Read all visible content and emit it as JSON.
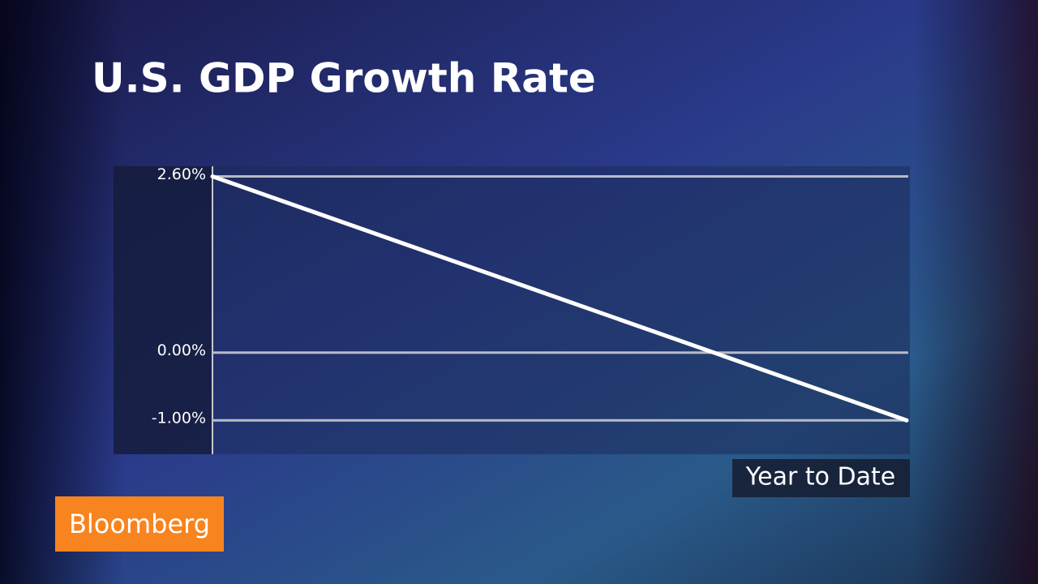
{
  "chart_data": {
    "type": "line",
    "title": "U.S. GDP Growth Rate",
    "x_label": "Year to Date",
    "categories": [
      null,
      null
    ],
    "values": [
      2.6,
      -1.0
    ],
    "color": "#ffffff",
    "ylim": [
      -1.5,
      2.75
    ],
    "yticks": [
      {
        "value": -1.0,
        "label": "-1.00%"
      },
      {
        "value": 0,
        "label": "0.00%"
      },
      {
        "value": 2.6,
        "label": "2.60%"
      }
    ],
    "grid": true
  },
  "logo": "Bloomberg"
}
